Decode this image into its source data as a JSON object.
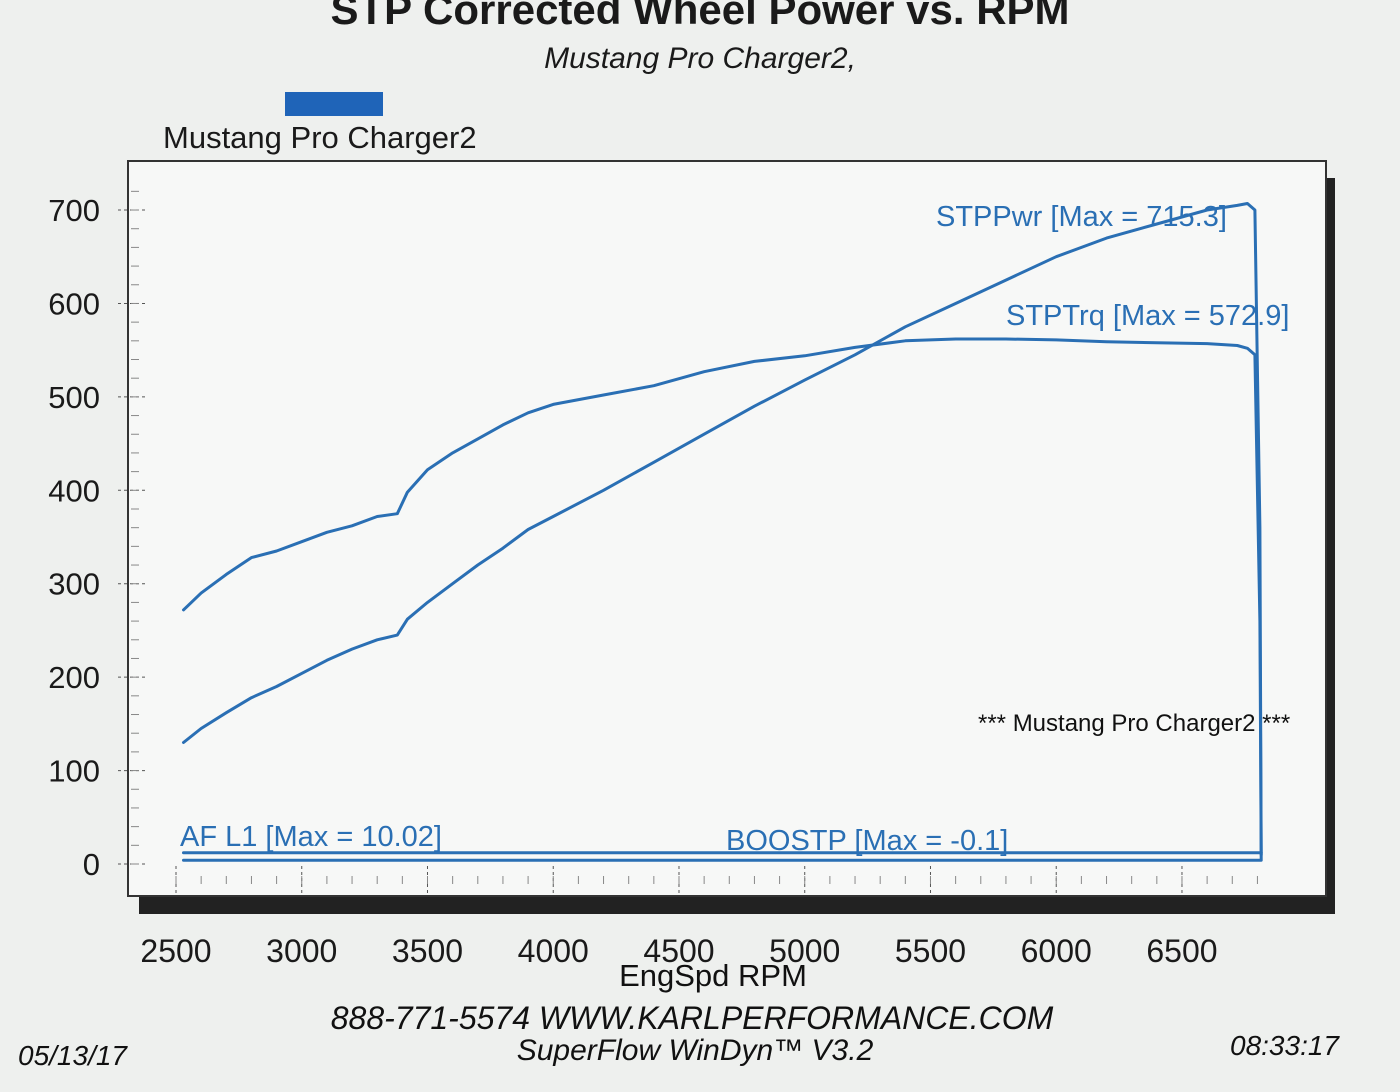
{
  "header": {
    "title": "STP Corrected Wheel Power vs. RPM",
    "subtitle": "Mustang Pro Charger2,"
  },
  "legend": {
    "label": "Mustang Pro Charger2",
    "color": "#1f64b8"
  },
  "annotation": "*** Mustang Pro Charger2 ***",
  "footer": {
    "contact": "888-771-5574  WWW.KARLPERFORMANCE.COM",
    "software": "SuperFlow WinDyn™  V3.2",
    "date": "05/13/17",
    "time": "08:33:17"
  },
  "chart_data": {
    "type": "line",
    "title": "STP Corrected Wheel Power vs. RPM",
    "subtitle": "Mustang Pro Charger2,",
    "xlabel": "EngSpd RPM",
    "ylabel": "",
    "xlim": [
      2500,
      6850
    ],
    "ylim": [
      0,
      730
    ],
    "x_ticks": [
      2500,
      3000,
      3500,
      4000,
      4500,
      5000,
      5500,
      6000,
      6500
    ],
    "y_ticks": [
      0,
      100,
      200,
      300,
      400,
      500,
      600,
      700
    ],
    "grid": false,
    "line_color": "#2a6fb4",
    "series": [
      {
        "name": "STPPwr [Max = 715.3]",
        "x": [
          2530,
          2600,
          2700,
          2800,
          2900,
          3000,
          3100,
          3200,
          3300,
          3380,
          3420,
          3500,
          3600,
          3700,
          3800,
          3900,
          4000,
          4200,
          4400,
          4600,
          4800,
          5000,
          5200,
          5400,
          5600,
          5800,
          6000,
          6200,
          6400,
          6600,
          6720,
          6760,
          6790,
          6810,
          6815
        ],
        "values": [
          130,
          145,
          162,
          178,
          190,
          204,
          218,
          230,
          240,
          245,
          262,
          280,
          300,
          320,
          338,
          358,
          372,
          400,
          430,
          460,
          490,
          518,
          545,
          575,
          600,
          625,
          650,
          670,
          685,
          700,
          705,
          707,
          700,
          360,
          5
        ]
      },
      {
        "name": "STPTrq [Max = 572.9]",
        "x": [
          2530,
          2600,
          2700,
          2800,
          2900,
          3000,
          3100,
          3200,
          3300,
          3380,
          3420,
          3500,
          3600,
          3700,
          3800,
          3900,
          4000,
          4200,
          4400,
          4600,
          4800,
          5000,
          5200,
          5400,
          5600,
          5800,
          6000,
          6200,
          6400,
          6600,
          6720,
          6760,
          6790,
          6810,
          6815
        ],
        "values": [
          272,
          290,
          310,
          328,
          335,
          345,
          355,
          362,
          372,
          375,
          398,
          422,
          440,
          455,
          470,
          483,
          492,
          502,
          512,
          527,
          538,
          544,
          553,
          560,
          562,
          562,
          561,
          559,
          558,
          557,
          555,
          552,
          545,
          260,
          10
        ]
      },
      {
        "name": "AF  L1  [Max = 10.02]",
        "x": [
          2530,
          6815
        ],
        "values": [
          12,
          12
        ]
      },
      {
        "name": "BOOSTP [Max = -0.1]",
        "x": [
          2530,
          6815
        ],
        "values": [
          4,
          4
        ]
      }
    ]
  }
}
